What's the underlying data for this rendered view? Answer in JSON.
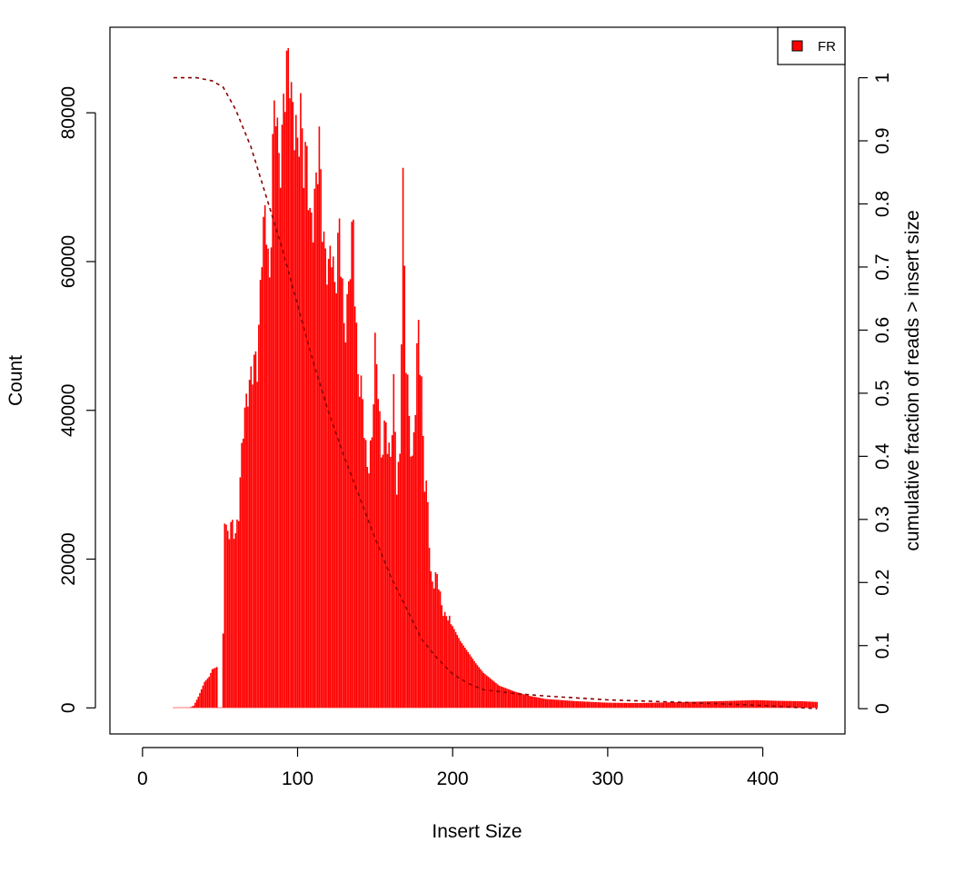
{
  "chart_data": {
    "type": "bar",
    "xlabel": "Insert Size",
    "ylabel": "Count",
    "y2label": "cumulative fraction of reads > insert size",
    "xlim": [
      -21,
      453
    ],
    "ylim": [
      -3500,
      91500
    ],
    "y2lim": [
      -0.04,
      1.08
    ],
    "xticks": [
      0,
      100,
      200,
      300,
      400
    ],
    "yticks": [
      0,
      20000,
      40000,
      60000,
      80000
    ],
    "y2ticks": [
      0,
      0.1,
      0.2,
      0.3,
      0.4,
      0.5,
      0.6,
      0.7,
      0.8,
      0.9,
      1
    ],
    "grid": false,
    "legend": {
      "position": "top-right",
      "entries": [
        "FR"
      ]
    },
    "colors": {
      "bars": "#ff0000",
      "cumulative": "#8b0000",
      "legend_fill": "#ff0000"
    },
    "series": [
      {
        "name": "FR",
        "kind": "histogram",
        "anchors": [
          [
            20,
            0
          ],
          [
            30,
            0
          ],
          [
            33,
            300
          ],
          [
            36,
            1500
          ],
          [
            38,
            2500
          ],
          [
            40,
            3500
          ],
          [
            43,
            4200
          ],
          [
            45,
            5200
          ],
          [
            48,
            5500
          ],
          [
            49,
            0
          ],
          [
            51,
            0
          ],
          [
            52,
            10000
          ],
          [
            53,
            26500
          ],
          [
            55,
            23500
          ],
          [
            57,
            24000
          ],
          [
            60,
            23500
          ],
          [
            62,
            27000
          ],
          [
            65,
            37000
          ],
          [
            68,
            44000
          ],
          [
            71,
            44500
          ],
          [
            74,
            47000
          ],
          [
            77,
            62000
          ],
          [
            80,
            65000
          ],
          [
            82,
            58000
          ],
          [
            84,
            75000
          ],
          [
            86,
            80000
          ],
          [
            88,
            74000
          ],
          [
            90,
            78000
          ],
          [
            93,
            84000
          ],
          [
            95,
            88000
          ],
          [
            97,
            81000
          ],
          [
            100,
            73000
          ],
          [
            102,
            82000
          ],
          [
            104,
            75000
          ],
          [
            106,
            72000
          ],
          [
            108,
            65000
          ],
          [
            110,
            68000
          ],
          [
            112,
            70000
          ],
          [
            114,
            74000
          ],
          [
            117,
            64000
          ],
          [
            120,
            57000
          ],
          [
            122,
            62000
          ],
          [
            124,
            58000
          ],
          [
            127,
            63000
          ],
          [
            130,
            52000
          ],
          [
            133,
            56000
          ],
          [
            136,
            64500
          ],
          [
            139,
            45000
          ],
          [
            141,
            42000
          ],
          [
            143,
            38000
          ],
          [
            145,
            33000
          ],
          [
            148,
            35000
          ],
          [
            150,
            48500
          ],
          [
            152,
            45000
          ],
          [
            154,
            33000
          ],
          [
            157,
            38000
          ],
          [
            160,
            34000
          ],
          [
            162,
            42000
          ],
          [
            164,
            30000
          ],
          [
            166,
            35000
          ],
          [
            168,
            69000
          ],
          [
            170,
            46000
          ],
          [
            172,
            40000
          ],
          [
            174,
            33000
          ],
          [
            176,
            40000
          ],
          [
            178,
            52000
          ],
          [
            180,
            44000
          ],
          [
            182,
            30000
          ],
          [
            184,
            27000
          ],
          [
            186,
            18000
          ],
          [
            188,
            17000
          ],
          [
            190,
            17500
          ],
          [
            192,
            15000
          ],
          [
            195,
            12500
          ],
          [
            200,
            11000
          ],
          [
            205,
            9000
          ],
          [
            210,
            7500
          ],
          [
            215,
            6000
          ],
          [
            220,
            4700
          ],
          [
            230,
            3000
          ],
          [
            240,
            2200
          ],
          [
            250,
            1600
          ],
          [
            260,
            1200
          ],
          [
            280,
            900
          ],
          [
            300,
            700
          ],
          [
            320,
            650
          ],
          [
            340,
            750
          ],
          [
            360,
            850
          ],
          [
            380,
            950
          ],
          [
            395,
            1050
          ],
          [
            410,
            950
          ],
          [
            425,
            900
          ],
          [
            435,
            800
          ]
        ]
      },
      {
        "name": "cumulative fraction",
        "kind": "cumulative",
        "points": [
          [
            20,
            1.0
          ],
          [
            35,
            1.0
          ],
          [
            45,
            0.995
          ],
          [
            52,
            0.985
          ],
          [
            60,
            0.95
          ],
          [
            70,
            0.89
          ],
          [
            80,
            0.81
          ],
          [
            90,
            0.73
          ],
          [
            100,
            0.64
          ],
          [
            110,
            0.55
          ],
          [
            120,
            0.47
          ],
          [
            130,
            0.4
          ],
          [
            140,
            0.335
          ],
          [
            150,
            0.27
          ],
          [
            160,
            0.21
          ],
          [
            170,
            0.16
          ],
          [
            180,
            0.11
          ],
          [
            190,
            0.08
          ],
          [
            200,
            0.055
          ],
          [
            210,
            0.04
          ],
          [
            220,
            0.03
          ],
          [
            240,
            0.024
          ],
          [
            260,
            0.02
          ],
          [
            300,
            0.014
          ],
          [
            350,
            0.01
          ],
          [
            400,
            0.005
          ],
          [
            435,
            0.0
          ]
        ]
      }
    ]
  }
}
